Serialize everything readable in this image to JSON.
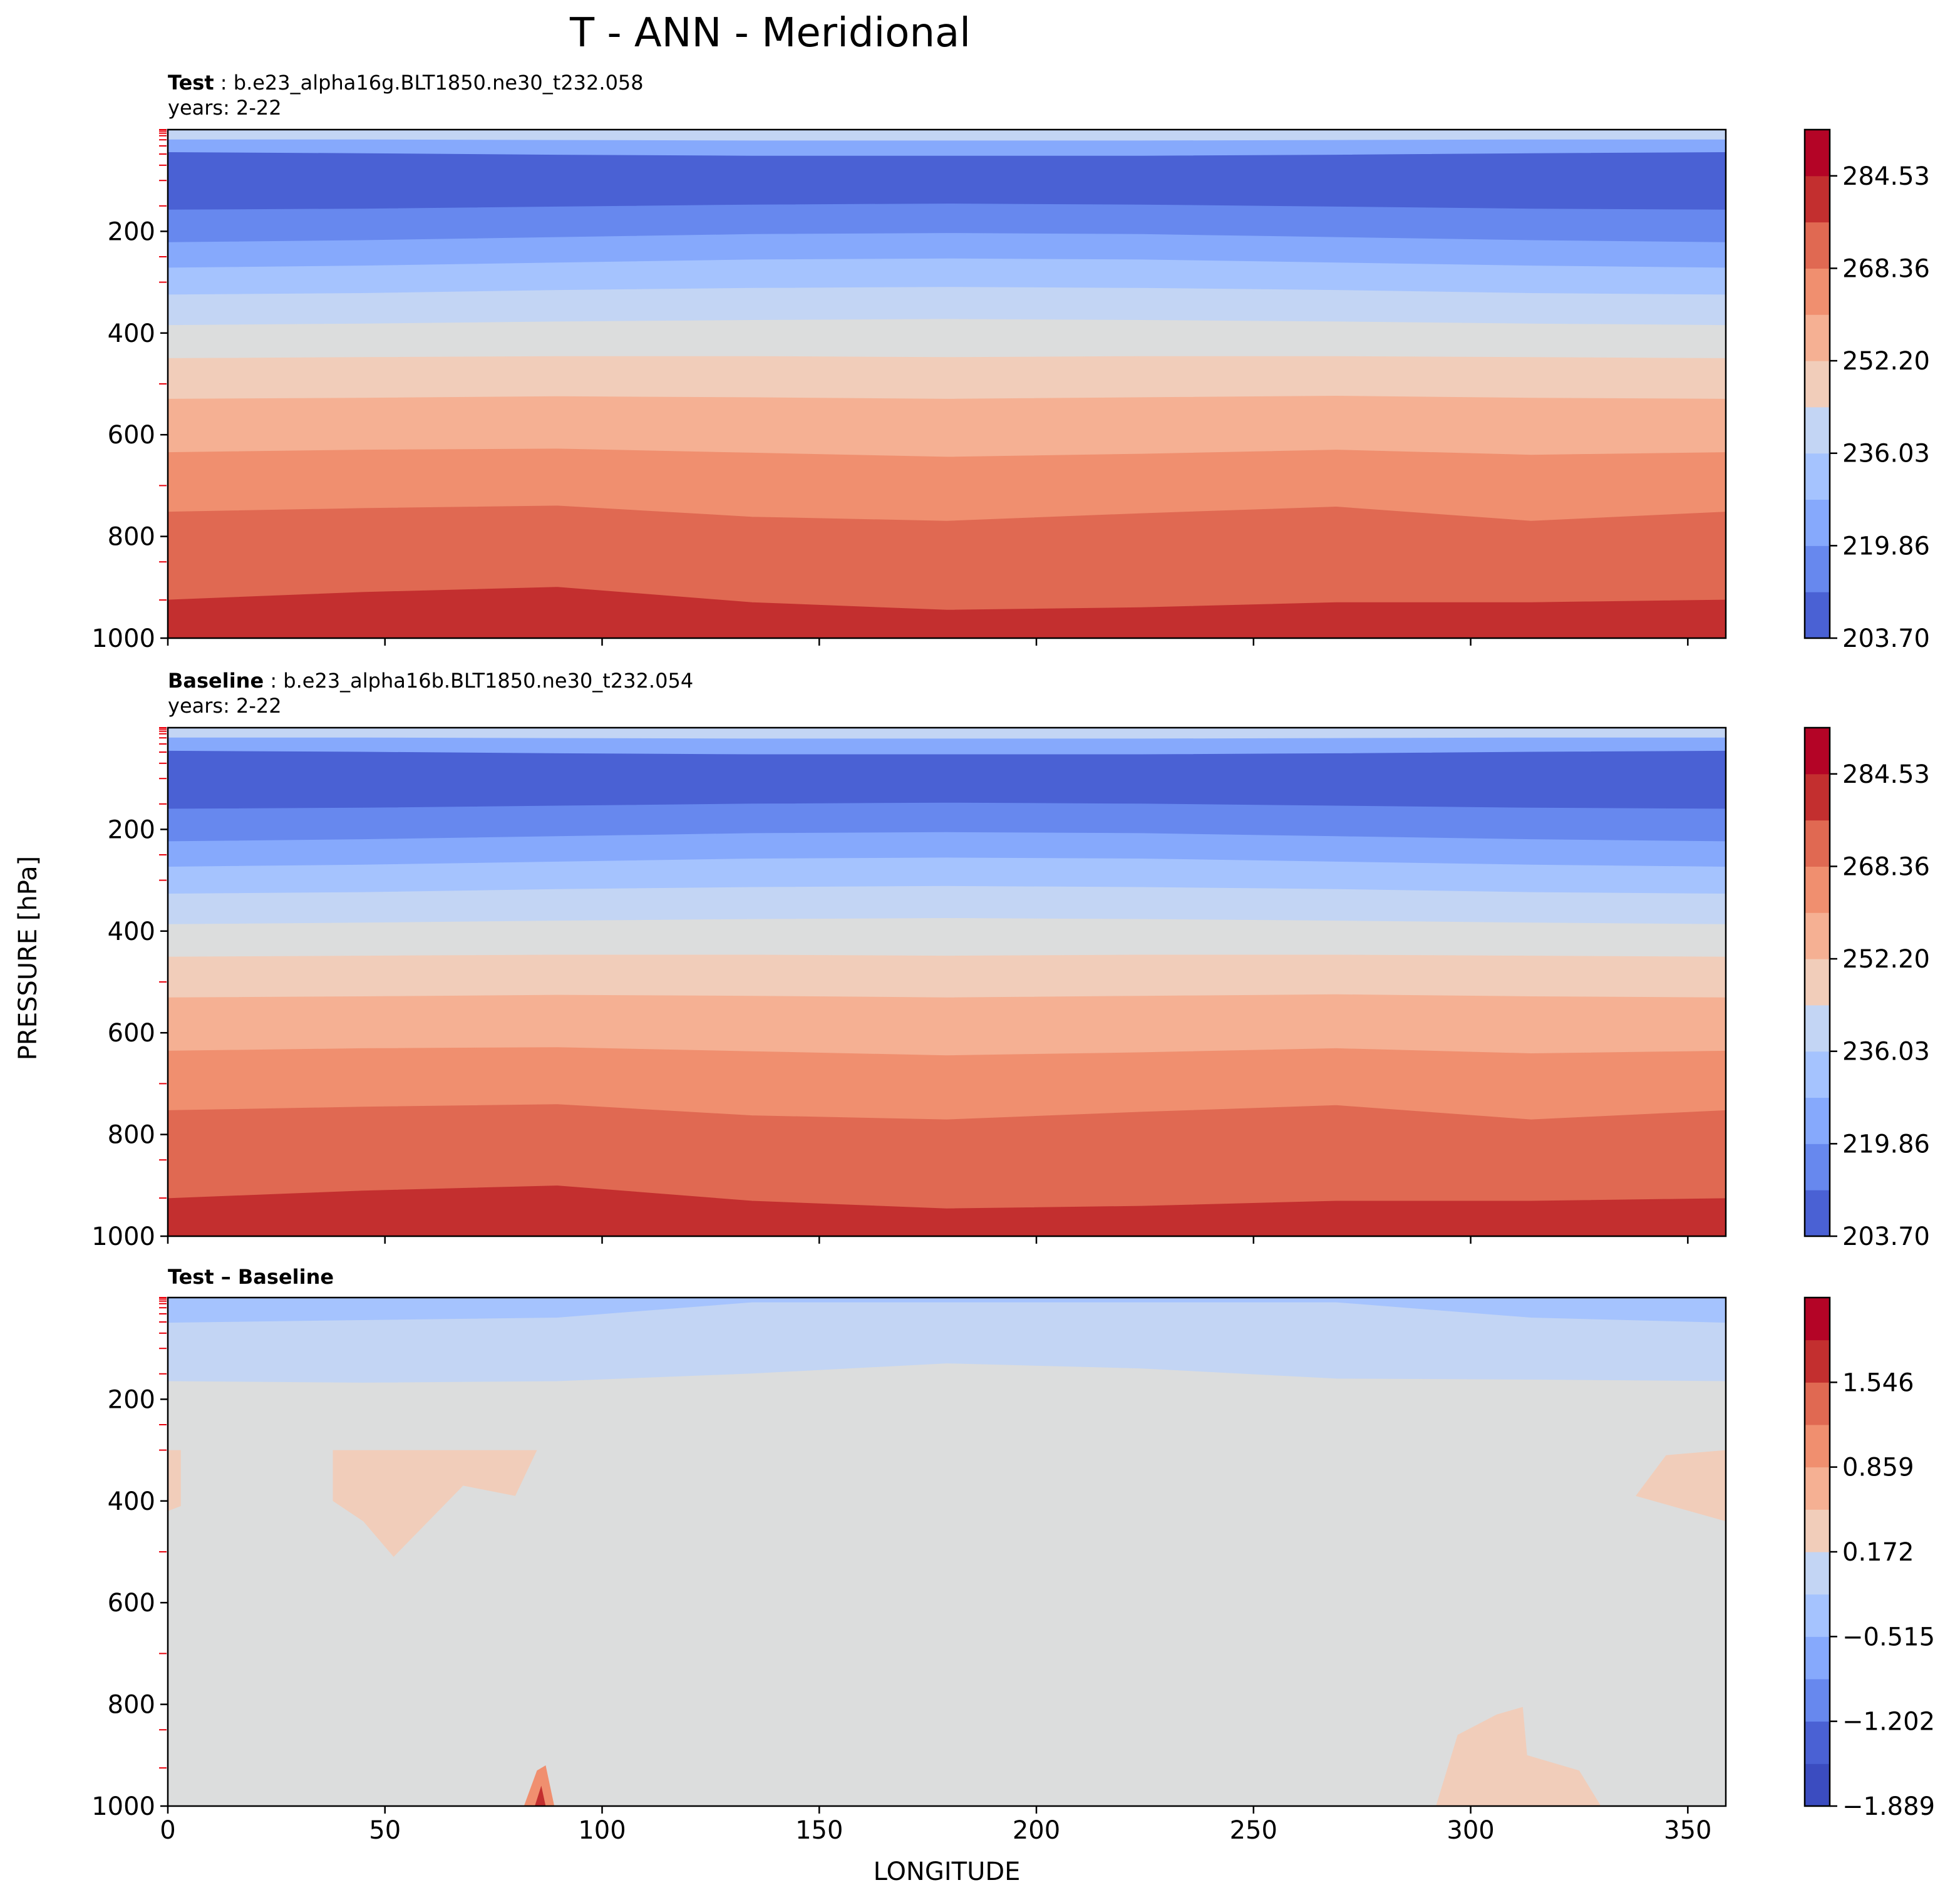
{
  "figure_title": "T - ANN - Meridional",
  "x_label": "LONGITUDE",
  "y_label": "PRESSURE [hPa]",
  "chart_data": [
    {
      "type": "contour",
      "id": "test",
      "title_bold": "Test",
      "title_rest": ": b.e23_alpha16g.BLT1850.ne30_t232.058",
      "subtitle": "years: 2-22",
      "x_ticks": [
        0,
        50,
        100,
        150,
        200,
        250,
        300,
        350
      ],
      "x_tick_labels": [],
      "xlim": [
        0,
        358.75
      ],
      "y_ticks": [
        200,
        400,
        600,
        800,
        1000
      ],
      "ylim": [
        1000,
        0
      ],
      "colorbar_ticks": [
        "203.70",
        "219.86",
        "236.03",
        "252.20",
        "268.36",
        "284.53"
      ],
      "colorbar_range": [
        203.7,
        292.6
      ],
      "colorbar_levels": 11,
      "bands": [
        {
          "top": [
            0,
            0,
            0,
            0,
            0,
            0,
            0,
            0,
            0
          ],
          "color": "#c3d5f4"
        },
        {
          "top": [
            20,
            20,
            21,
            22,
            22,
            22,
            21,
            20,
            20
          ],
          "color": "#86a9fc"
        },
        {
          "top": [
            45,
            47,
            50,
            52,
            52,
            52,
            50,
            47,
            45
          ],
          "color": "#4a61d4"
        },
        {
          "top": [
            158,
            156,
            152,
            148,
            146,
            148,
            152,
            156,
            158
          ],
          "color": "#6788ee"
        },
        {
          "top": [
            222,
            218,
            212,
            206,
            204,
            206,
            212,
            218,
            222
          ],
          "color": "#86a9fc"
        },
        {
          "top": [
            272,
            268,
            262,
            256,
            254,
            256,
            262,
            268,
            272
          ],
          "color": "#a5c3fe"
        },
        {
          "top": [
            325,
            322,
            316,
            312,
            310,
            312,
            316,
            322,
            325
          ],
          "color": "#c3d5f4"
        },
        {
          "top": [
            385,
            382,
            378,
            375,
            373,
            375,
            378,
            382,
            385
          ],
          "color": "#dcdddd"
        },
        {
          "top": [
            450,
            448,
            446,
            446,
            448,
            446,
            446,
            448,
            450
          ],
          "color": "#f1cdba"
        },
        {
          "top": [
            530,
            528,
            525,
            527,
            530,
            527,
            524,
            528,
            530
          ],
          "color": "#f5b093"
        },
        {
          "top": [
            635,
            630,
            628,
            636,
            644,
            638,
            630,
            640,
            635
          ],
          "color": "#f08f6f"
        },
        {
          "top": [
            752,
            745,
            740,
            762,
            770,
            755,
            742,
            770,
            752
          ],
          "color": "#e06952"
        },
        {
          "top": [
            925,
            910,
            900,
            930,
            945,
            940,
            930,
            930,
            925
          ],
          "color": "#c32f2f"
        }
      ]
    },
    {
      "type": "contour",
      "id": "baseline",
      "title_bold": "Baseline",
      "title_rest": ": b.e23_alpha16b.BLT1850.ne30_t232.054",
      "subtitle": "years: 2-22",
      "x_ticks": [
        0,
        50,
        100,
        150,
        200,
        250,
        300,
        350
      ],
      "x_tick_labels": [],
      "xlim": [
        0,
        358.75
      ],
      "y_ticks": [
        200,
        400,
        600,
        800,
        1000
      ],
      "ylim": [
        1000,
        0
      ],
      "colorbar_ticks": [
        "203.70",
        "219.86",
        "236.03",
        "252.20",
        "268.36",
        "284.53"
      ],
      "colorbar_range": [
        203.7,
        292.6
      ],
      "colorbar_levels": 11,
      "bands": [
        {
          "top": [
            0,
            0,
            0,
            0,
            0,
            0,
            0,
            0,
            0
          ],
          "color": "#c3d5f4"
        },
        {
          "top": [
            20,
            20,
            21,
            22,
            22,
            22,
            21,
            20,
            20
          ],
          "color": "#86a9fc"
        },
        {
          "top": [
            46,
            48,
            51,
            53,
            53,
            53,
            51,
            48,
            46
          ],
          "color": "#4a61d4"
        },
        {
          "top": [
            160,
            158,
            154,
            150,
            148,
            150,
            154,
            158,
            160
          ],
          "color": "#6788ee"
        },
        {
          "top": [
            224,
            220,
            214,
            208,
            206,
            208,
            214,
            220,
            224
          ],
          "color": "#86a9fc"
        },
        {
          "top": [
            274,
            270,
            264,
            258,
            256,
            258,
            264,
            270,
            274
          ],
          "color": "#a5c3fe"
        },
        {
          "top": [
            327,
            324,
            318,
            314,
            312,
            314,
            318,
            324,
            327
          ],
          "color": "#c3d5f4"
        },
        {
          "top": [
            387,
            384,
            380,
            377,
            375,
            377,
            380,
            384,
            387
          ],
          "color": "#dcdddd"
        },
        {
          "top": [
            451,
            449,
            447,
            447,
            449,
            447,
            447,
            449,
            451
          ],
          "color": "#f1cdba"
        },
        {
          "top": [
            531,
            529,
            526,
            528,
            531,
            528,
            525,
            529,
            531
          ],
          "color": "#f5b093"
        },
        {
          "top": [
            636,
            631,
            629,
            637,
            645,
            639,
            631,
            641,
            636
          ],
          "color": "#f08f6f"
        },
        {
          "top": [
            753,
            746,
            741,
            763,
            771,
            756,
            743,
            771,
            753
          ],
          "color": "#e06952"
        },
        {
          "top": [
            926,
            911,
            901,
            931,
            946,
            941,
            931,
            931,
            926
          ],
          "color": "#c32f2f"
        }
      ]
    },
    {
      "type": "contour",
      "id": "difference",
      "title_bold": "Test – Baseline",
      "title_rest": "",
      "subtitle": "",
      "x_ticks": [
        0,
        50,
        100,
        150,
        200,
        250,
        300,
        350
      ],
      "x_tick_labels": [
        "0",
        "50",
        "100",
        "150",
        "200",
        "250",
        "300",
        "350"
      ],
      "xlim": [
        0,
        358.75
      ],
      "y_ticks": [
        200,
        400,
        600,
        800,
        1000
      ],
      "ylim": [
        1000,
        0
      ],
      "colorbar_ticks": [
        "−1.889",
        "−1.202",
        "−0.515",
        "0.172",
        "0.859",
        "1.546"
      ],
      "colorbar_range": [
        -1.889,
        2.232
      ],
      "colorbar_levels": 12,
      "bands": [
        {
          "top": [
            0,
            0,
            0,
            0,
            0,
            0,
            0,
            0,
            0
          ],
          "color": "#a5c3fe"
        },
        {
          "top": [
            50,
            45,
            40,
            10,
            10,
            10,
            10,
            40,
            50
          ],
          "color": "#c3d5f4"
        },
        {
          "top": [
            165,
            168,
            165,
            150,
            130,
            140,
            160,
            162,
            165
          ],
          "color": "#dcdddd"
        }
      ]
    }
  ]
}
